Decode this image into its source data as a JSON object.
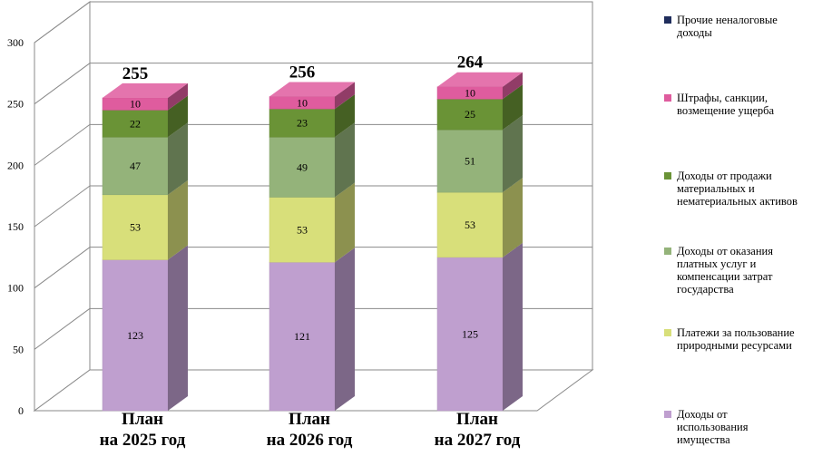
{
  "chart_data": {
    "type": "bar",
    "stacked": true,
    "three_d": true,
    "categories": [
      "План\nна 2025 год",
      "План\nна 2026 год",
      "План\nна 2027 год"
    ],
    "totals": [
      "255",
      "256",
      "264"
    ],
    "ylim": [
      0,
      300
    ],
    "yticks": [
      "0",
      "50",
      "100",
      "150",
      "200",
      "250",
      "300"
    ],
    "grid": true,
    "legend_position": "right",
    "series": [
      {
        "name": "Доходы от\nиспользования\nимущества",
        "values": [
          123,
          121,
          125
        ],
        "color": "#bf9fcf"
      },
      {
        "name": "Платежи за пользование\nприродными ресурсами",
        "values": [
          53,
          53,
          53
        ],
        "color": "#d8df7a"
      },
      {
        "name": "Доходы от оказания\nплатных услуг и\nкомпенсации затрат\nгосударства",
        "values": [
          47,
          49,
          51
        ],
        "color": "#94b37a"
      },
      {
        "name": "Доходы от продажи\nматериальных и\nнематериальных активов",
        "values": [
          22,
          23,
          25
        ],
        "color": "#6a9336"
      },
      {
        "name": "Штрафы, санкции,\nвозмещение ущерба",
        "values": [
          10,
          10,
          10
        ],
        "color": "#df5c9e"
      },
      {
        "name": "Прочие неналоговые\nдоходы",
        "values": [
          0,
          0,
          0
        ],
        "color": "#1f2d5c"
      }
    ]
  }
}
